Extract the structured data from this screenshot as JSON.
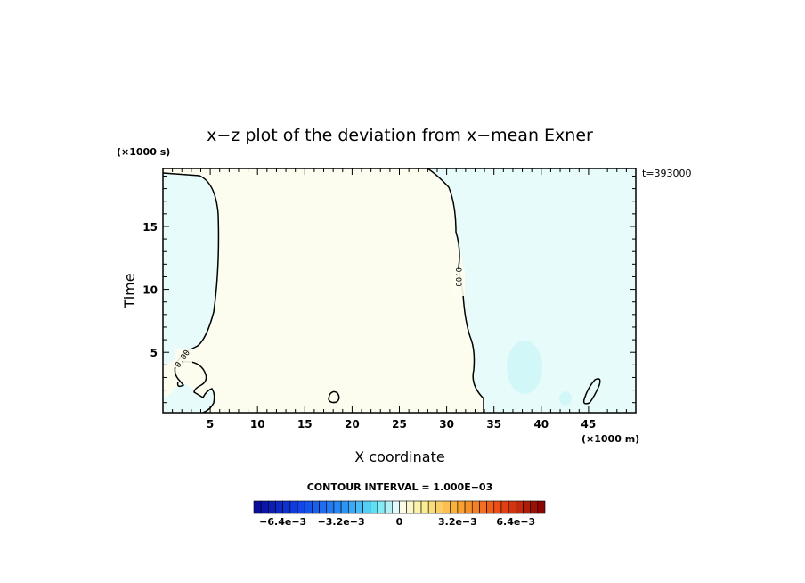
{
  "chart_data": {
    "type": "contour",
    "title": "x−z plot of the deviation from x−mean Exner",
    "xlabel": "X coordinate",
    "ylabel": "Time",
    "x_unit": "(×1000 m)",
    "y_unit": "(×1000 s)",
    "time_stamp": "t=393000",
    "xlim": [
      0,
      50
    ],
    "ylim": [
      0.2,
      19.6
    ],
    "x_ticks": [
      5,
      10,
      15,
      20,
      25,
      30,
      35,
      40,
      45
    ],
    "x_tick_labels": [
      "5",
      "10",
      "15",
      "20",
      "25",
      "30",
      "35",
      "40",
      "45"
    ],
    "y_ticks": [
      5,
      10,
      15
    ],
    "y_tick_labels": [
      "5",
      "10",
      "15"
    ],
    "contour_label": "0.00",
    "contour_interval_text": "CONTOUR INTERVAL = 1.000E−03",
    "colorbar": {
      "min": -0.008,
      "max": 0.008,
      "n_bins": 40,
      "tick_values": [
        -0.0064,
        -0.0032,
        0,
        0.0032,
        0.0064
      ],
      "tick_labels": [
        "−6.4e−3",
        "−3.2e−3",
        "0",
        "3.2e−3",
        "6.4e−3"
      ]
    },
    "colors": {
      "negative_fill": "#e8fbfb",
      "positive_fill": "#fdfdef",
      "negative_patch": "#d2f7f8"
    },
    "regions": [
      {
        "sign": "negative",
        "description_value": -0.0002,
        "x_range": [
          0,
          6
        ],
        "y_range": [
          0.2,
          19.6
        ]
      },
      {
        "sign": "positive",
        "description_value": 0.0003,
        "x_range": [
          5,
          32
        ],
        "y_range": [
          0.2,
          19.6
        ]
      },
      {
        "sign": "negative",
        "description_value": -0.0004,
        "x_range": [
          29,
          50
        ],
        "y_range": [
          0.2,
          19.6
        ]
      }
    ]
  }
}
